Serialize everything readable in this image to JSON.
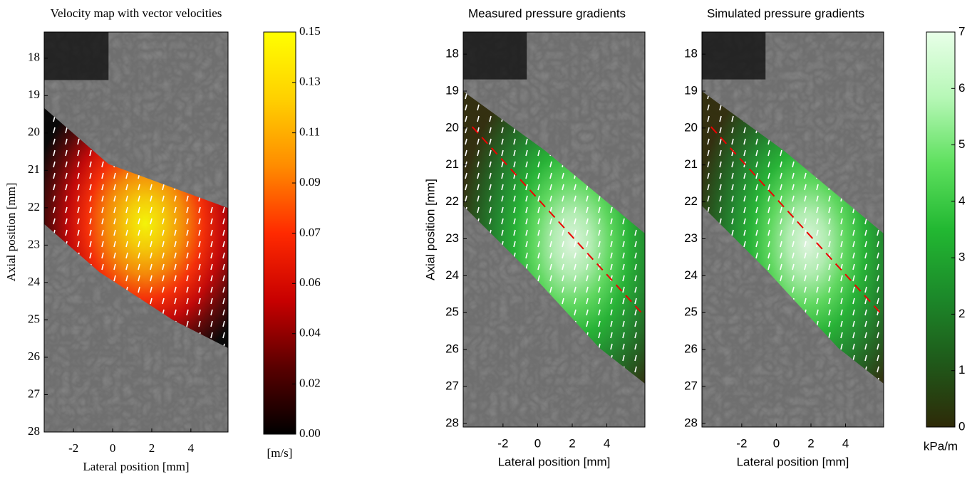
{
  "chart_data": [
    {
      "type": "heatmap",
      "title": "Velocity map with vector velocities",
      "xlabel": "Lateral position [mm]",
      "ylabel": "Axial position [mm]",
      "xlim": [
        -3.5,
        5.9
      ],
      "ylim": [
        28,
        17.3
      ],
      "xticks": [
        -2,
        0,
        2,
        4
      ],
      "yticks": [
        18,
        19,
        20,
        21,
        22,
        23,
        24,
        25,
        26,
        27,
        28
      ],
      "colormap": [
        "#000000",
        "#5a0000",
        "#c80000",
        "#ff2a00",
        "#ff8c00",
        "#ffd000",
        "#ffff00"
      ],
      "colorbar": {
        "label": "[m/s]",
        "lim": [
          0,
          0.15
        ],
        "ticks": [
          {
            "value": 0,
            "label": "0.00"
          },
          {
            "value": 0.0187,
            "label": "0.02"
          },
          {
            "value": 0.0375,
            "label": "0.04"
          },
          {
            "value": 0.0562,
            "label": "0.06"
          },
          {
            "value": 0.0749,
            "label": "0.07"
          },
          {
            "value": 0.0937,
            "label": "0.09"
          },
          {
            "value": 0.1124,
            "label": "0.11"
          },
          {
            "value": 0.1312,
            "label": "0.13"
          },
          0.15
        ]
      }
    },
    {
      "type": "heatmap",
      "title": "Measured pressure gradients",
      "xlabel": "Lateral position [mm]",
      "ylabel": "Axial position [mm]",
      "xlim": [
        -4.3,
        6.2
      ],
      "ylim": [
        28.1,
        17.4
      ],
      "xticks": [
        -2,
        0,
        2,
        4
      ],
      "yticks": [
        18,
        19,
        20,
        21,
        22,
        23,
        24,
        25,
        26,
        27,
        28
      ],
      "colormap": [
        "#2e2a08",
        "#1f5a1a",
        "#1c8a2a",
        "#22b832",
        "#5ee05e",
        "#b6f7b6",
        "#e8ffe8"
      ]
    },
    {
      "type": "heatmap",
      "title": "Simulated pressure gradients",
      "xlabel": "Lateral position [mm]",
      "xlim": [
        -4.3,
        6.2
      ],
      "ylim": [
        28.1,
        17.4
      ],
      "xticks": [
        -2,
        0,
        2,
        4
      ],
      "yticks": [
        18,
        19,
        20,
        21,
        22,
        23,
        24,
        25,
        26,
        27,
        28
      ],
      "colormap": [
        "#2e2a08",
        "#1f5a1a",
        "#1c8a2a",
        "#22b832",
        "#5ee05e",
        "#b6f7b6",
        "#e8ffe8"
      ],
      "colorbar": {
        "label": "kPa/m",
        "lim": [
          0,
          7
        ],
        "ticks": [
          0,
          1,
          2,
          3,
          4,
          5,
          6,
          7
        ]
      }
    }
  ]
}
